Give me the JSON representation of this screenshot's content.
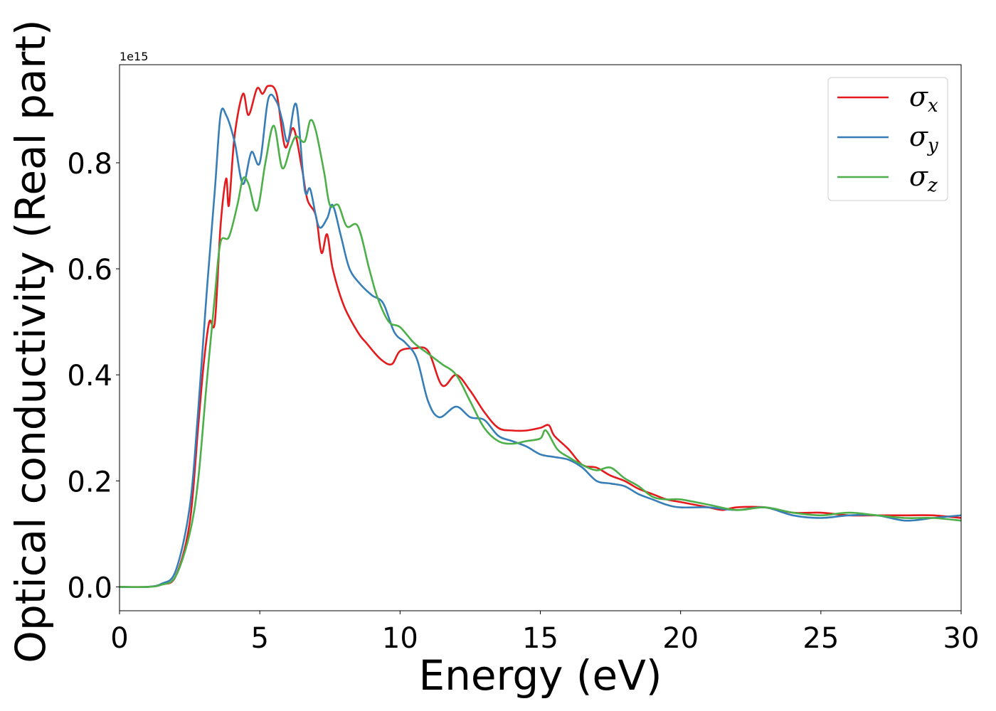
{
  "chart_data": {
    "type": "line",
    "xlabel": "Energy (eV)",
    "ylabel": "Optical conductivity (Real part)",
    "y_offset_label": "1e15",
    "xlim": [
      0,
      30
    ],
    "ylim": [
      -0.045,
      0.985
    ],
    "xticks": [
      0,
      5,
      10,
      15,
      20,
      25,
      30
    ],
    "xtick_labels": [
      "0",
      "5",
      "10",
      "15",
      "20",
      "25",
      "30"
    ],
    "yticks": [
      0.0,
      0.2,
      0.4,
      0.6,
      0.8
    ],
    "ytick_labels": [
      "0.0",
      "0.2",
      "0.4",
      "0.6",
      "0.8"
    ],
    "grid": false,
    "legend_position": "top-right",
    "series": [
      {
        "name": "σx",
        "legend_symbol": "σ",
        "legend_subscript": "x",
        "color": "#e41a1c",
        "points": [
          [
            0,
            0.0
          ],
          [
            1,
            0.0
          ],
          [
            1.5,
            0.005
          ],
          [
            2,
            0.02
          ],
          [
            2.5,
            0.12
          ],
          [
            2.8,
            0.3
          ],
          [
            3,
            0.42
          ],
          [
            3.2,
            0.5
          ],
          [
            3.4,
            0.5
          ],
          [
            3.6,
            0.68
          ],
          [
            3.8,
            0.77
          ],
          [
            3.9,
            0.72
          ],
          [
            4.1,
            0.85
          ],
          [
            4.4,
            0.93
          ],
          [
            4.6,
            0.89
          ],
          [
            4.9,
            0.94
          ],
          [
            5.1,
            0.93
          ],
          [
            5.3,
            0.945
          ],
          [
            5.6,
            0.93
          ],
          [
            5.9,
            0.83
          ],
          [
            6.2,
            0.865
          ],
          [
            6.5,
            0.79
          ],
          [
            6.7,
            0.73
          ],
          [
            7.0,
            0.7
          ],
          [
            7.2,
            0.63
          ],
          [
            7.4,
            0.665
          ],
          [
            7.6,
            0.6
          ],
          [
            8.0,
            0.53
          ],
          [
            8.5,
            0.48
          ],
          [
            8.8,
            0.46
          ],
          [
            9.3,
            0.43
          ],
          [
            9.7,
            0.42
          ],
          [
            10.0,
            0.445
          ],
          [
            10.5,
            0.45
          ],
          [
            11.0,
            0.445
          ],
          [
            11.5,
            0.38
          ],
          [
            12.0,
            0.4
          ],
          [
            12.5,
            0.37
          ],
          [
            13.0,
            0.33
          ],
          [
            13.5,
            0.3
          ],
          [
            14.0,
            0.295
          ],
          [
            14.5,
            0.295
          ],
          [
            15.0,
            0.3
          ],
          [
            15.3,
            0.305
          ],
          [
            15.5,
            0.285
          ],
          [
            16.0,
            0.26
          ],
          [
            16.5,
            0.23
          ],
          [
            17.0,
            0.225
          ],
          [
            17.5,
            0.21
          ],
          [
            18.0,
            0.2
          ],
          [
            18.5,
            0.185
          ],
          [
            19.0,
            0.175
          ],
          [
            19.5,
            0.165
          ],
          [
            20.0,
            0.16
          ],
          [
            21.0,
            0.15
          ],
          [
            21.5,
            0.145
          ],
          [
            22.0,
            0.15
          ],
          [
            23.0,
            0.15
          ],
          [
            24.0,
            0.14
          ],
          [
            25.0,
            0.14
          ],
          [
            26.0,
            0.135
          ],
          [
            27.0,
            0.135
          ],
          [
            28.0,
            0.135
          ],
          [
            29.0,
            0.135
          ],
          [
            30.0,
            0.13
          ]
        ]
      },
      {
        "name": "σy",
        "legend_symbol": "σ",
        "legend_subscript": "y",
        "color": "#377eb8",
        "points": [
          [
            0,
            0.0
          ],
          [
            1,
            0.0
          ],
          [
            1.5,
            0.006
          ],
          [
            2,
            0.03
          ],
          [
            2.5,
            0.15
          ],
          [
            2.8,
            0.33
          ],
          [
            3.1,
            0.55
          ],
          [
            3.4,
            0.75
          ],
          [
            3.6,
            0.89
          ],
          [
            3.8,
            0.89
          ],
          [
            4.1,
            0.84
          ],
          [
            4.4,
            0.76
          ],
          [
            4.7,
            0.82
          ],
          [
            5.0,
            0.8
          ],
          [
            5.3,
            0.92
          ],
          [
            5.6,
            0.915
          ],
          [
            5.8,
            0.88
          ],
          [
            6.0,
            0.84
          ],
          [
            6.3,
            0.91
          ],
          [
            6.6,
            0.75
          ],
          [
            6.8,
            0.75
          ],
          [
            7.1,
            0.68
          ],
          [
            7.4,
            0.695
          ],
          [
            7.6,
            0.72
          ],
          [
            7.9,
            0.66
          ],
          [
            8.2,
            0.6
          ],
          [
            8.6,
            0.57
          ],
          [
            9.0,
            0.55
          ],
          [
            9.4,
            0.535
          ],
          [
            9.8,
            0.48
          ],
          [
            10.2,
            0.46
          ],
          [
            10.6,
            0.43
          ],
          [
            11.0,
            0.35
          ],
          [
            11.4,
            0.32
          ],
          [
            12.0,
            0.34
          ],
          [
            12.5,
            0.32
          ],
          [
            13.0,
            0.315
          ],
          [
            13.5,
            0.285
          ],
          [
            14.0,
            0.275
          ],
          [
            14.5,
            0.265
          ],
          [
            15.0,
            0.25
          ],
          [
            15.5,
            0.245
          ],
          [
            16.0,
            0.24
          ],
          [
            16.5,
            0.225
          ],
          [
            17.0,
            0.2
          ],
          [
            17.5,
            0.195
          ],
          [
            18.0,
            0.19
          ],
          [
            18.5,
            0.175
          ],
          [
            19.0,
            0.165
          ],
          [
            19.5,
            0.155
          ],
          [
            20.0,
            0.15
          ],
          [
            21.0,
            0.15
          ],
          [
            22.0,
            0.145
          ],
          [
            23.0,
            0.15
          ],
          [
            24.0,
            0.135
          ],
          [
            25.0,
            0.13
          ],
          [
            26.0,
            0.135
          ],
          [
            27.0,
            0.135
          ],
          [
            28.0,
            0.125
          ],
          [
            29.0,
            0.13
          ],
          [
            30.0,
            0.135
          ]
        ]
      },
      {
        "name": "σz",
        "legend_symbol": "σ",
        "legend_subscript": "z",
        "color": "#4daf4a",
        "points": [
          [
            0,
            0.0
          ],
          [
            1,
            0.0
          ],
          [
            1.5,
            0.004
          ],
          [
            2,
            0.02
          ],
          [
            2.5,
            0.1
          ],
          [
            2.8,
            0.2
          ],
          [
            3.1,
            0.38
          ],
          [
            3.4,
            0.55
          ],
          [
            3.6,
            0.65
          ],
          [
            3.9,
            0.66
          ],
          [
            4.2,
            0.72
          ],
          [
            4.4,
            0.77
          ],
          [
            4.6,
            0.76
          ],
          [
            4.9,
            0.71
          ],
          [
            5.2,
            0.8
          ],
          [
            5.5,
            0.87
          ],
          [
            5.8,
            0.79
          ],
          [
            6.1,
            0.83
          ],
          [
            6.3,
            0.85
          ],
          [
            6.6,
            0.84
          ],
          [
            6.8,
            0.88
          ],
          [
            7.0,
            0.86
          ],
          [
            7.3,
            0.78
          ],
          [
            7.5,
            0.72
          ],
          [
            7.8,
            0.72
          ],
          [
            8.1,
            0.68
          ],
          [
            8.5,
            0.68
          ],
          [
            8.9,
            0.6
          ],
          [
            9.2,
            0.545
          ],
          [
            9.6,
            0.5
          ],
          [
            10.0,
            0.49
          ],
          [
            10.5,
            0.46
          ],
          [
            11.0,
            0.44
          ],
          [
            11.5,
            0.42
          ],
          [
            12.0,
            0.4
          ],
          [
            12.5,
            0.35
          ],
          [
            13.0,
            0.3
          ],
          [
            13.5,
            0.275
          ],
          [
            14.0,
            0.27
          ],
          [
            14.5,
            0.275
          ],
          [
            15.0,
            0.28
          ],
          [
            15.2,
            0.295
          ],
          [
            15.6,
            0.26
          ],
          [
            16.0,
            0.245
          ],
          [
            16.5,
            0.23
          ],
          [
            17.0,
            0.22
          ],
          [
            17.5,
            0.225
          ],
          [
            18.0,
            0.205
          ],
          [
            18.5,
            0.19
          ],
          [
            19.0,
            0.17
          ],
          [
            19.5,
            0.165
          ],
          [
            20.0,
            0.165
          ],
          [
            21.0,
            0.155
          ],
          [
            22.0,
            0.145
          ],
          [
            23.0,
            0.15
          ],
          [
            24.0,
            0.14
          ],
          [
            25.0,
            0.135
          ],
          [
            26.0,
            0.14
          ],
          [
            27.0,
            0.135
          ],
          [
            28.0,
            0.13
          ],
          [
            29.0,
            0.13
          ],
          [
            30.0,
            0.125
          ]
        ]
      }
    ]
  }
}
